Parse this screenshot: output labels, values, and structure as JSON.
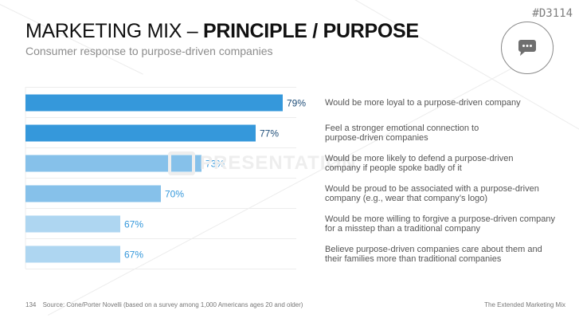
{
  "doc_id": "#D3114",
  "badge_icon": "chat-bubble-icon",
  "header": {
    "title_regular": "MARKETING MIX – ",
    "title_bold": "PRINCIPLE / PURPOSE",
    "subtitle": "Consumer response to purpose-driven companies"
  },
  "watermark": "PRESENTATION",
  "chart_data": {
    "type": "bar",
    "orientation": "horizontal",
    "title": "Consumer response to purpose-driven companies",
    "xlabel": "",
    "ylabel": "",
    "unit": "%",
    "xlim": [
      60,
      80
    ],
    "grid": true,
    "legend": "none",
    "categories": [
      "Would be more loyal to a purpose-driven company",
      "Feel a stronger emotional connection to purpose-driven companies",
      "Would be more likely to defend a purpose-driven company if people spoke badly of it",
      "Would be proud to be associated with a purpose-driven company (e.g., wear that company’s logo)",
      "Would be more willing to forgive a purpose-driven company for a misstep than a traditional company",
      "Believe purpose-driven companies care about them and their families more than traditional companies"
    ],
    "values": [
      79,
      77,
      73,
      70,
      67,
      67
    ],
    "value_labels": [
      "79%",
      "77%",
      "73%",
      "70%",
      "67%",
      "67%"
    ],
    "bar_colors": [
      "#3598db",
      "#3598db",
      "#86c1ea",
      "#86c1ea",
      "#aed6f1",
      "#aed6f1"
    ],
    "label_colors": [
      "#1f4e79",
      "#1f4e79",
      "#3598db",
      "#3598db",
      "#3598db",
      "#3598db"
    ]
  },
  "labels": [
    [
      "Would be more loyal to a purpose-driven company"
    ],
    [
      "Feel a stronger emotional connection to",
      "purpose-driven companies"
    ],
    [
      "Would be more likely to defend a purpose-driven",
      "company if people spoke badly of it"
    ],
    [
      "Would be proud to be associated with a purpose-driven",
      "company (e.g., wear that company’s logo)"
    ],
    [
      "Would be more willing to forgive a purpose-driven company",
      "for a misstep than a traditional company"
    ],
    [
      "Believe purpose-driven companies care about them and",
      "their families more than traditional companies"
    ]
  ],
  "footer": {
    "page_number": "134",
    "source": "Source: Cone/Porter Novelli (based on a survey among 1,000 Americans ages 20 and older)",
    "section": "The Extended Marketing Mix"
  }
}
